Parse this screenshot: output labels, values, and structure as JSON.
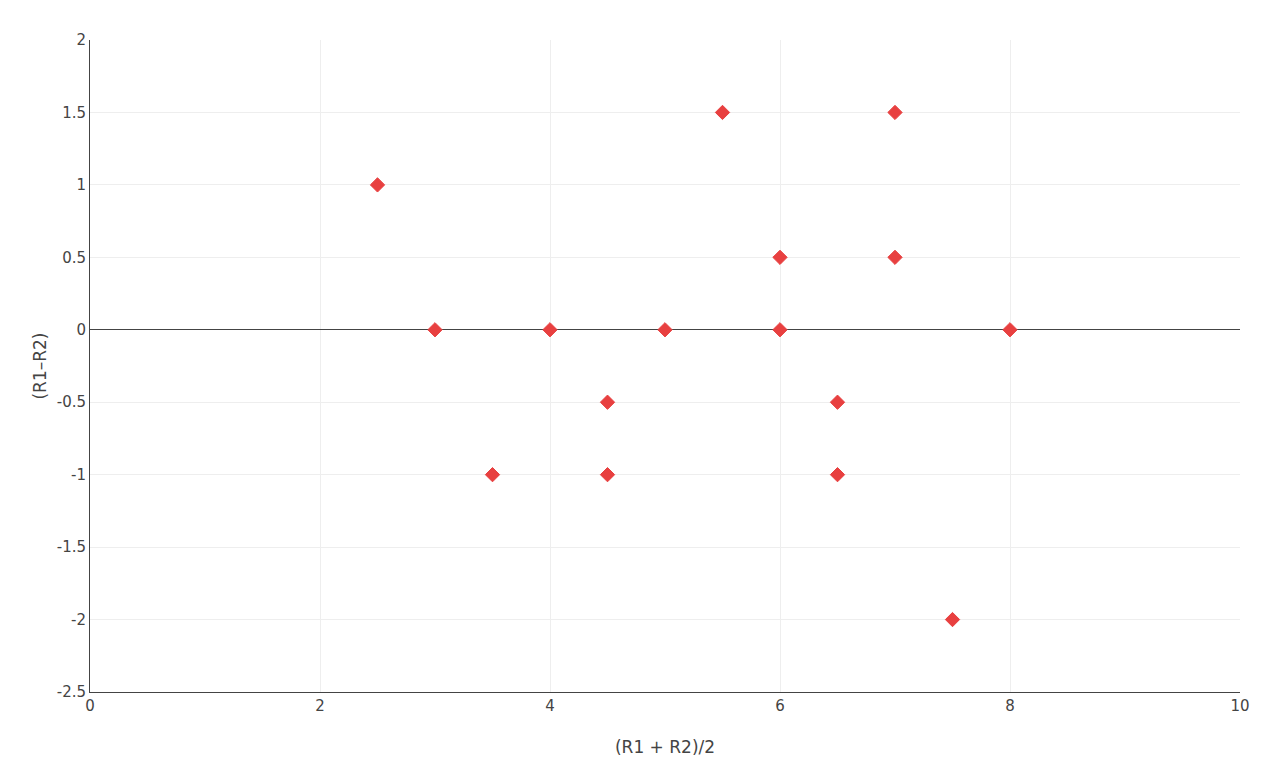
{
  "chart_data": {
    "type": "scatter",
    "x": [
      2.5,
      3.0,
      3.5,
      4.0,
      4.5,
      4.5,
      5.0,
      5.5,
      6.0,
      6.0,
      6.5,
      6.5,
      7.0,
      7.0,
      7.5,
      8.0
    ],
    "values": [
      1.0,
      0.0,
      -1.0,
      0.0,
      -0.5,
      -1.0,
      0.0,
      1.5,
      0.0,
      0.5,
      -0.5,
      -1.0,
      1.5,
      0.5,
      -2.0,
      0.0
    ],
    "color": "#E84040",
    "marker": "diamond",
    "xlabel": "(R1 + R2)/2",
    "ylabel": "(R1–R2)",
    "xlim": [
      0,
      10
    ],
    "ylim": [
      -2.5,
      2.0
    ],
    "xticks": [
      0,
      2,
      4,
      6,
      8,
      10
    ],
    "yticks": [
      -2.5,
      -2.0,
      -1.5,
      -1.0,
      -0.5,
      0.0,
      0.5,
      1.0,
      1.5,
      2.0
    ],
    "grid": true
  }
}
